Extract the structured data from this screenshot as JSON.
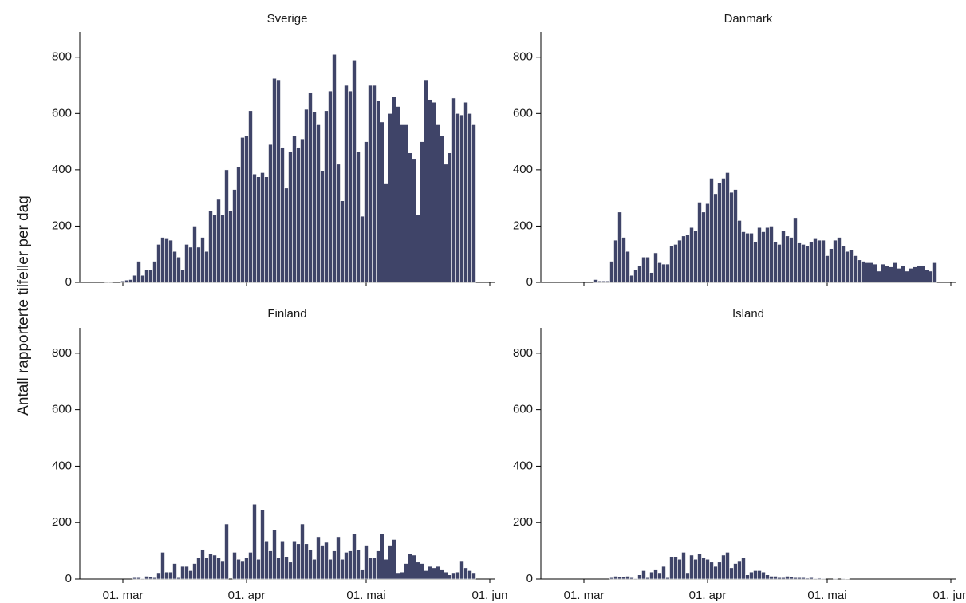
{
  "chart_data": {
    "type": "bar",
    "ylabel": "Antall rapporterte tilfeller per dag",
    "ylim": [
      0,
      890
    ],
    "yticks": [
      0,
      200,
      400,
      600,
      800
    ],
    "x_start_date": "2020-02-15",
    "xticks": [
      {
        "label": "01. mar",
        "date": "2020-03-01"
      },
      {
        "label": "01. apr",
        "date": "2020-04-01"
      },
      {
        "label": "01. mai",
        "date": "2020-05-01"
      },
      {
        "label": "01. jun",
        "date": "2020-06-01"
      }
    ],
    "colors": {
      "bar": "#3f4468"
    },
    "panels": [
      {
        "title": "Sverige",
        "values": [
          0,
          0,
          0,
          0,
          0,
          0,
          0,
          0,
          0,
          0,
          0,
          2,
          2,
          0,
          0,
          5,
          8,
          10,
          25,
          75,
          25,
          45,
          45,
          75,
          135,
          160,
          155,
          150,
          110,
          90,
          45,
          135,
          125,
          200,
          125,
          160,
          110,
          255,
          240,
          295,
          240,
          400,
          255,
          330,
          410,
          515,
          520,
          610,
          385,
          375,
          390,
          375,
          490,
          725,
          720,
          480,
          335,
          465,
          520,
          480,
          510,
          615,
          675,
          605,
          560,
          395,
          610,
          680,
          810,
          420,
          290,
          700,
          680,
          790,
          465,
          235,
          500,
          700,
          700,
          645,
          570,
          350,
          600,
          660,
          625,
          560,
          560,
          460,
          440,
          240,
          500,
          720,
          650,
          640,
          560,
          520,
          420,
          460,
          655,
          600,
          595,
          640,
          600,
          560,
          590,
          520,
          520,
          540,
          600,
          640,
          600,
          640,
          600,
          520,
          620,
          640,
          650
        ]
      },
      {
        "title": "Danmark",
        "values": [
          0,
          0,
          0,
          0,
          0,
          0,
          0,
          0,
          0,
          0,
          0,
          0,
          0,
          0,
          0,
          0,
          0,
          0,
          10,
          5,
          5,
          5,
          75,
          150,
          250,
          160,
          110,
          25,
          45,
          60,
          90,
          90,
          35,
          105,
          70,
          65,
          65,
          130,
          135,
          150,
          165,
          170,
          195,
          185,
          285,
          250,
          280,
          370,
          315,
          355,
          370,
          390,
          320,
          330,
          220,
          180,
          175,
          175,
          145,
          195,
          180,
          195,
          200,
          145,
          135,
          185,
          165,
          160,
          230,
          140,
          135,
          130,
          145,
          155,
          150,
          150,
          95,
          120,
          150,
          160,
          130,
          110,
          115,
          95,
          80,
          75,
          70,
          70,
          65,
          40,
          65,
          60,
          55,
          70,
          50,
          60,
          40,
          50,
          55,
          60,
          60,
          45,
          40,
          70,
          65,
          40,
          50,
          55,
          35,
          40,
          40,
          30,
          25,
          40,
          35,
          45
        ]
      },
      {
        "title": "Finland",
        "values": [
          0,
          0,
          0,
          0,
          0,
          0,
          0,
          0,
          0,
          0,
          0,
          0,
          0,
          0,
          0,
          0,
          0,
          0,
          5,
          5,
          2,
          10,
          8,
          5,
          20,
          95,
          25,
          25,
          55,
          5,
          45,
          45,
          30,
          55,
          75,
          105,
          75,
          90,
          85,
          75,
          65,
          195,
          0,
          95,
          70,
          65,
          75,
          95,
          265,
          70,
          245,
          135,
          100,
          175,
          75,
          135,
          80,
          60,
          135,
          125,
          195,
          125,
          105,
          70,
          150,
          120,
          130,
          70,
          100,
          150,
          70,
          95,
          100,
          160,
          105,
          35,
          120,
          75,
          75,
          100,
          160,
          70,
          120,
          140,
          20,
          25,
          55,
          90,
          85,
          60,
          55,
          30,
          45,
          40,
          45,
          35,
          25,
          15,
          20,
          25,
          65,
          40,
          30,
          20,
          25,
          30,
          20,
          25,
          30,
          25,
          20,
          15,
          25,
          20,
          30,
          25,
          15,
          20,
          25,
          60,
          25
        ]
      },
      {
        "title": "Island",
        "values": [
          0,
          0,
          0,
          0,
          0,
          0,
          0,
          0,
          0,
          0,
          0,
          0,
          0,
          0,
          0,
          0,
          0,
          0,
          0,
          0,
          0,
          0,
          5,
          10,
          8,
          8,
          10,
          5,
          2,
          15,
          30,
          5,
          25,
          35,
          20,
          45,
          5,
          80,
          80,
          70,
          95,
          20,
          85,
          70,
          90,
          75,
          70,
          60,
          45,
          60,
          85,
          95,
          40,
          55,
          65,
          75,
          15,
          25,
          30,
          30,
          25,
          15,
          10,
          10,
          5,
          5,
          10,
          8,
          5,
          5,
          5,
          3,
          5,
          2,
          3,
          2,
          0,
          0,
          2,
          0,
          2,
          1,
          0,
          0,
          0,
          0,
          0,
          0,
          0,
          0,
          0,
          0,
          0,
          0,
          0,
          0,
          0,
          0,
          0,
          0,
          0,
          0,
          0,
          0,
          0,
          0,
          0,
          0,
          0,
          0,
          0,
          0,
          0,
          0,
          0,
          0,
          0,
          0,
          0,
          0,
          0,
          0
        ]
      }
    ]
  }
}
